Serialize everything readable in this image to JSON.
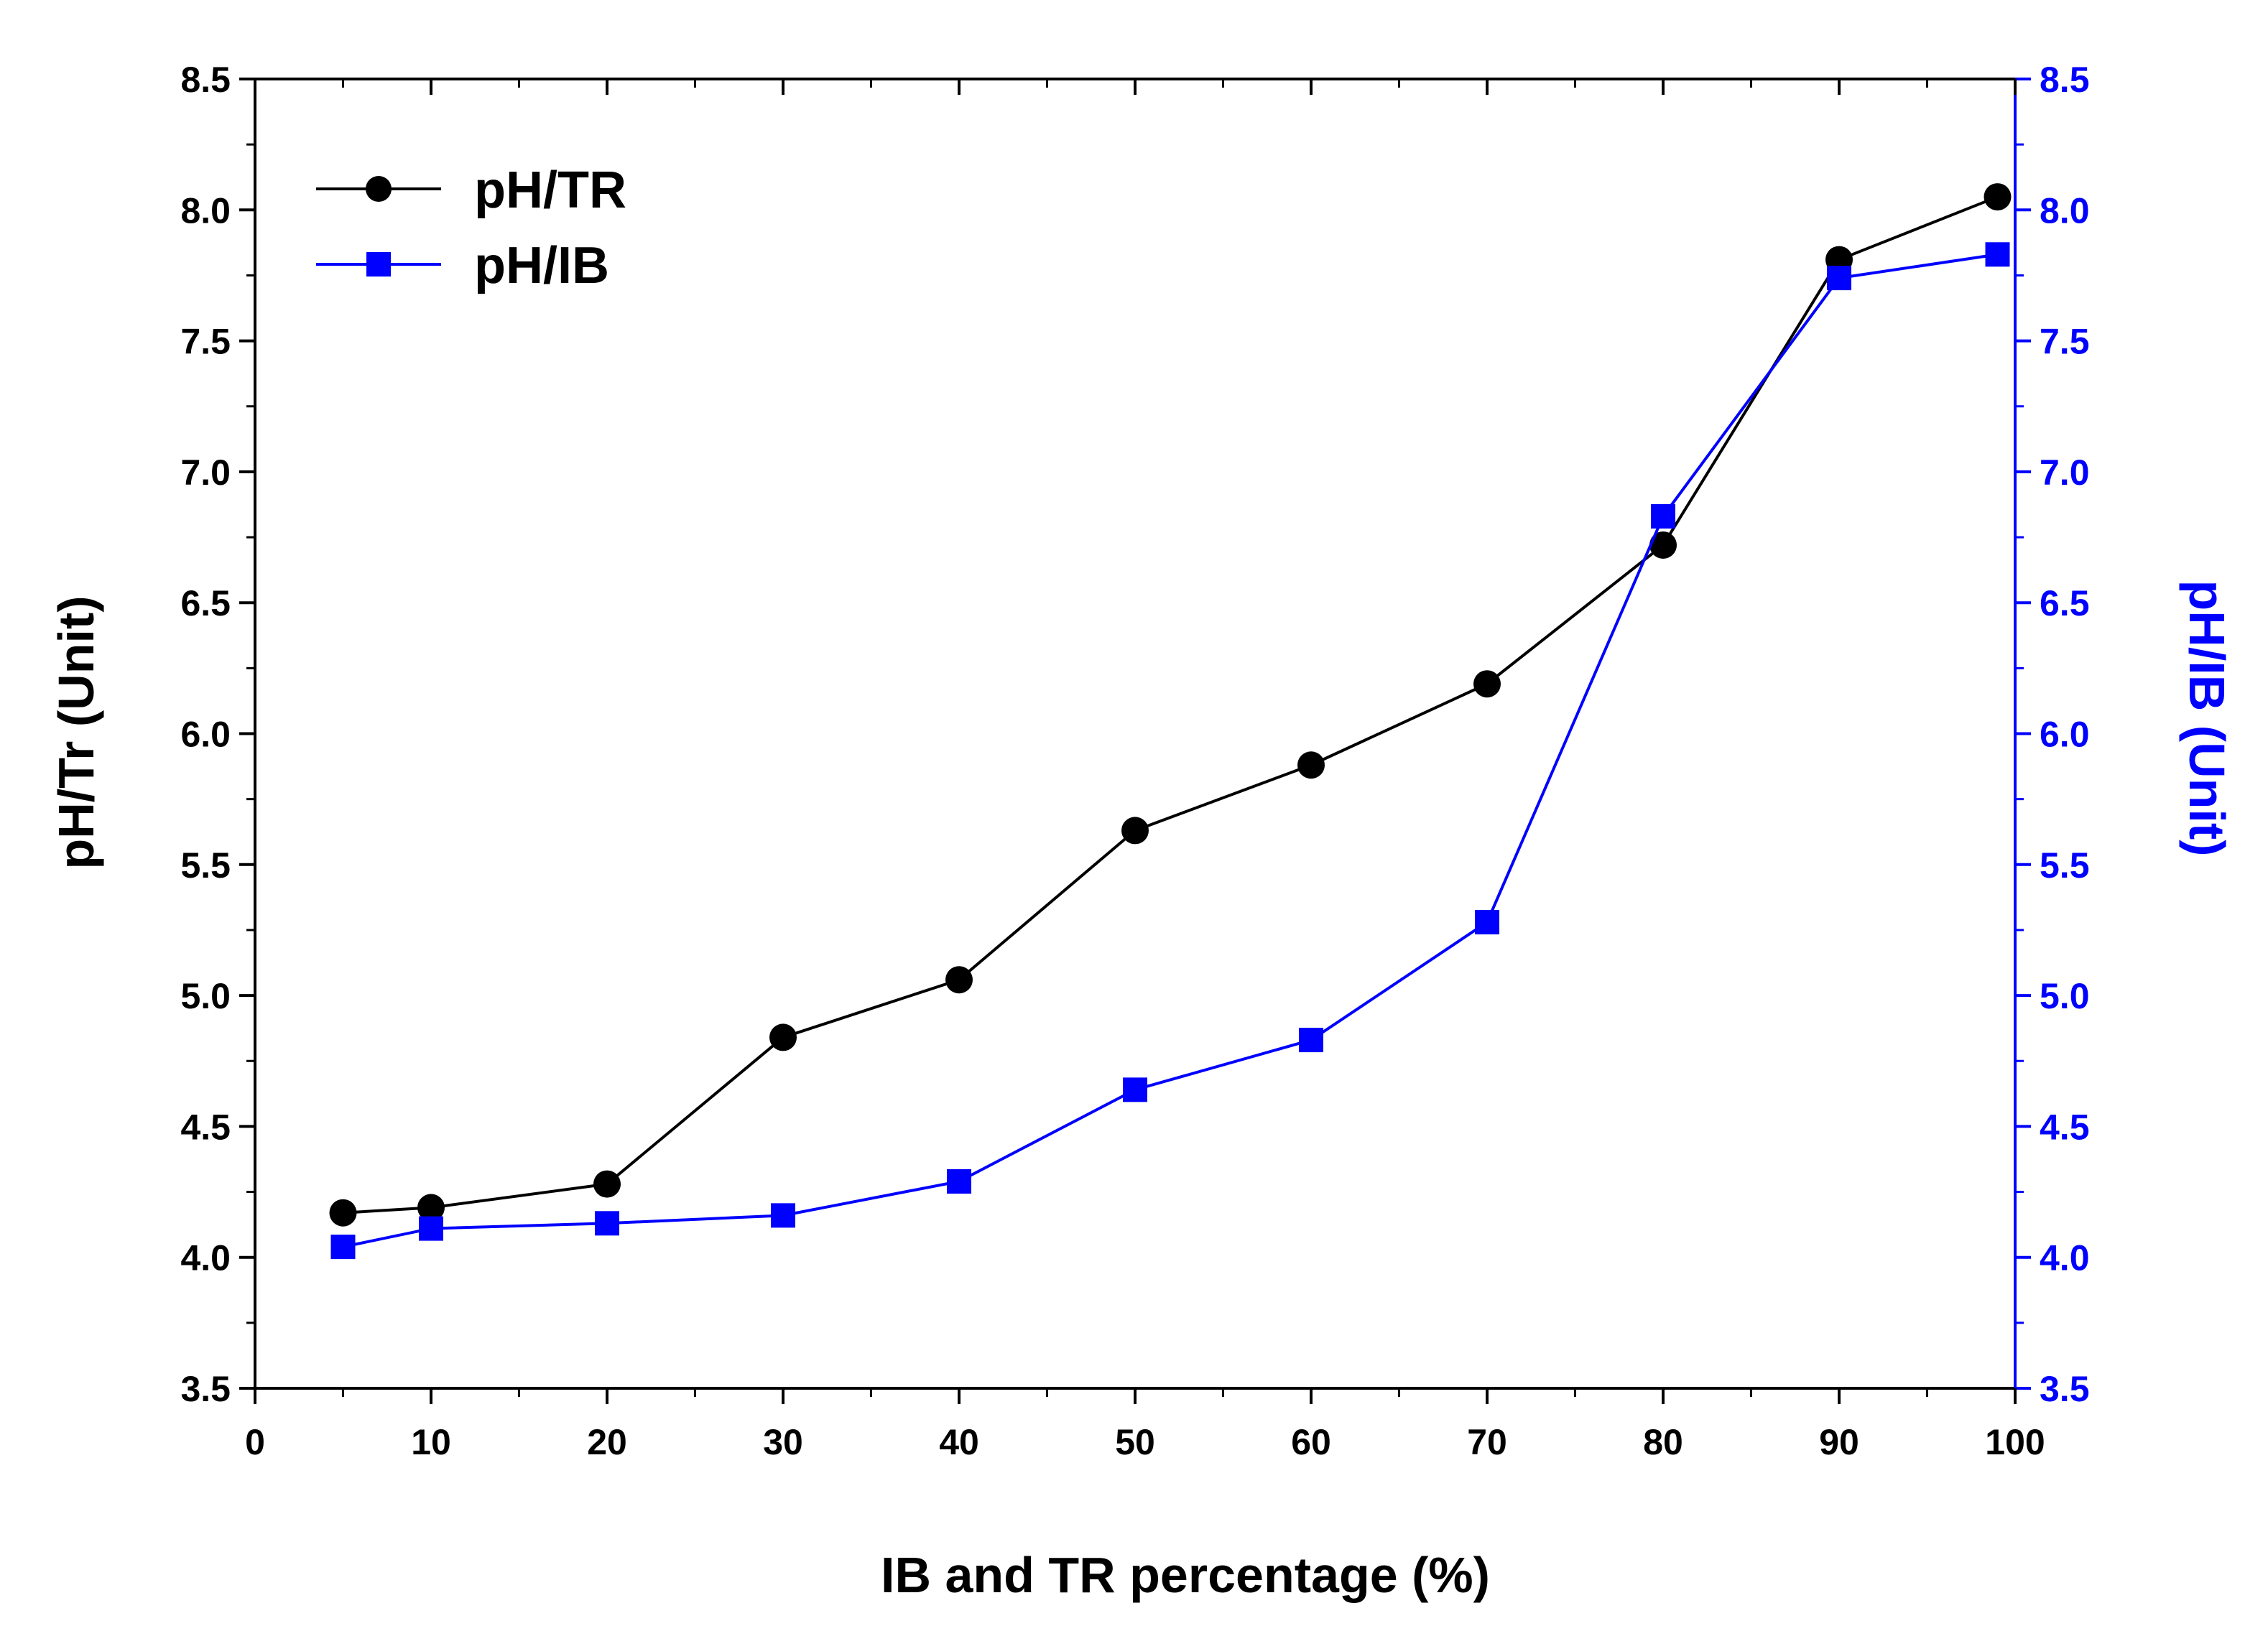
{
  "chart_data": {
    "type": "line",
    "title": "",
    "xlabel": "IB and TR percentage (%)",
    "ylabel_left": "pH/Tr (Unit)",
    "ylabel_right": "pH/IB (Unit)",
    "xlim": [
      0,
      100
    ],
    "ylim_left": [
      3.5,
      8.5
    ],
    "ylim_right": [
      3.5,
      8.5
    ],
    "x_ticks": [
      0,
      10,
      20,
      30,
      40,
      50,
      60,
      70,
      80,
      90,
      100
    ],
    "x_tick_labels": [
      "0",
      "10",
      "20",
      "30",
      "40",
      "50",
      "60",
      "70",
      "80",
      "90",
      "100"
    ],
    "y_ticks": [
      3.5,
      4.0,
      4.5,
      5.0,
      5.5,
      6.0,
      6.5,
      7.0,
      7.5,
      8.0,
      8.5
    ],
    "y_tick_labels": [
      "3.5",
      "4.0",
      "4.5",
      "5.0",
      "5.5",
      "6.0",
      "6.5",
      "7.0",
      "7.5",
      "8.0",
      "8.5"
    ],
    "grid": false,
    "legend_position": "top-left",
    "x": [
      5,
      10,
      20,
      30,
      40,
      50,
      60,
      70,
      80,
      90,
      99
    ],
    "series": [
      {
        "name": "pH/TR",
        "axis": "left",
        "color": "#000000",
        "marker": "circle",
        "values": [
          4.17,
          4.19,
          4.28,
          4.84,
          5.06,
          5.63,
          5.88,
          6.19,
          6.72,
          7.81,
          8.05
        ]
      },
      {
        "name": "pH/IB",
        "axis": "right",
        "color": "#0000ff",
        "marker": "square",
        "values": [
          4.04,
          4.11,
          4.13,
          4.16,
          4.29,
          4.64,
          4.83,
          5.28,
          6.83,
          7.74,
          7.83
        ]
      }
    ]
  }
}
